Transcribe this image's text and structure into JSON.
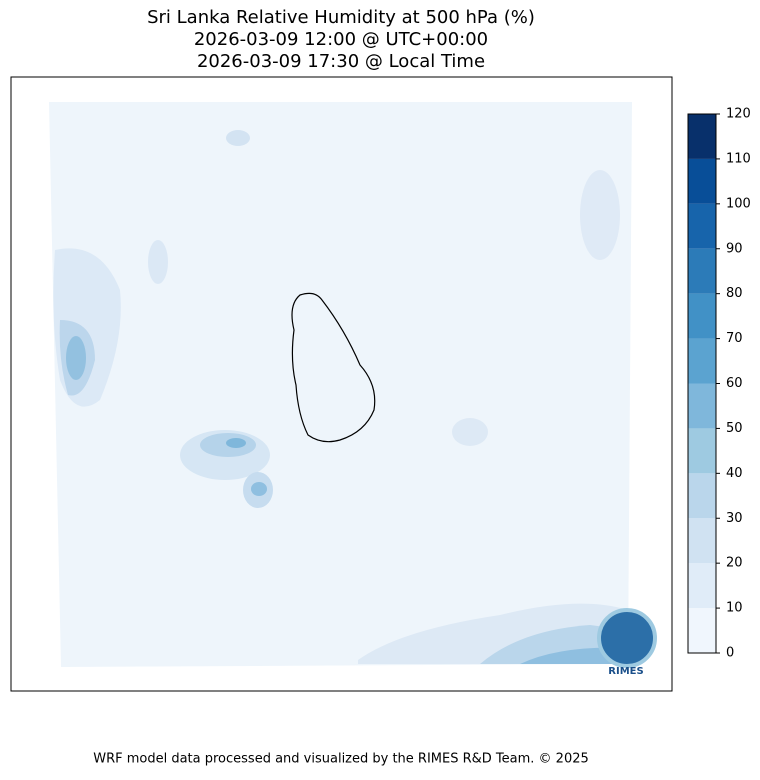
{
  "title": [
    "Sri Lanka Relative Humidity at 500 hPa (%)",
    "2026-03-09 12:00 @ UTC+00:00",
    "2026-03-09 17:30 @ Local Time"
  ],
  "colorbar": {
    "lim": [
      0,
      120
    ],
    "ticks": [
      0,
      10,
      20,
      30,
      40,
      50,
      60,
      70,
      80,
      90,
      100,
      110,
      120
    ],
    "colors": [
      "#f0f6fd",
      "#e0ecf8",
      "#d0e2f2",
      "#bad6eb",
      "#9ecae1",
      "#7fb7db",
      "#5ba3d0",
      "#4191c6",
      "#2c7bb8",
      "#1764ab",
      "#084e98",
      "#08306b"
    ]
  },
  "logo": "RIMES",
  "footer": "WRF model data processed and visualized by the RIMES R&D Team. © 2025"
}
